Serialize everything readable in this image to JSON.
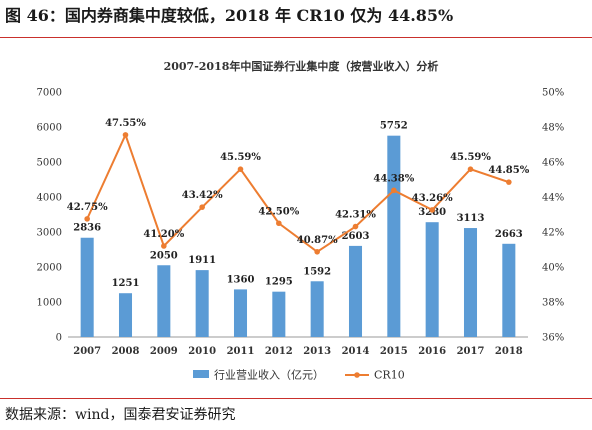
{
  "figure": {
    "title": "图 46：国内券商集中度较低，2018 年 CR10 仅为 44.85%",
    "source": "数据来源：wind，国泰君安证券研究"
  },
  "colors": {
    "bar": "#5b9bd5",
    "line": "#ed7d31",
    "rule": "#c9302c",
    "axis": "#999999",
    "text": "#333333"
  },
  "chart_data": {
    "type": "bar",
    "title": "2007-2018年中国证券行业集中度（按营业收入）分析",
    "categories": [
      "2007",
      "2008",
      "2009",
      "2010",
      "2011",
      "2012",
      "2013",
      "2014",
      "2015",
      "2016",
      "2017",
      "2018"
    ],
    "series": [
      {
        "name": "行业营业收入（亿元）",
        "type": "bar",
        "axis": "left",
        "values": [
          2836,
          1251,
          2050,
          1911,
          1360,
          1295,
          1592,
          2603,
          5752,
          3280,
          3113,
          2663
        ],
        "labels": [
          "2836",
          "1251",
          "2050",
          "1911",
          "1360",
          "1295",
          "1592",
          "2603",
          "5752",
          "3280",
          "3113",
          "2663"
        ]
      },
      {
        "name": "CR10",
        "type": "line",
        "axis": "right",
        "values": [
          42.75,
          47.55,
          41.2,
          43.42,
          45.59,
          42.5,
          40.87,
          42.31,
          44.38,
          43.26,
          45.59,
          44.85
        ],
        "labels": [
          "42.75%",
          "47.55%",
          "41.20%",
          "43.42%",
          "45.59%",
          "42.50%",
          "40.87%",
          "42.31%",
          "44.38%",
          "43.26%",
          "45.59%",
          "44.85%"
        ]
      }
    ],
    "y_left": {
      "min": 0,
      "max": 7000,
      "ticks": [
        "0",
        "1000",
        "2000",
        "3000",
        "4000",
        "5000",
        "6000",
        "7000"
      ]
    },
    "y_right": {
      "min": 36,
      "max": 50,
      "ticks": [
        "36%",
        "38%",
        "40%",
        "42%",
        "44%",
        "46%",
        "48%",
        "50%"
      ]
    },
    "legend_position": "bottom",
    "grid": false
  }
}
